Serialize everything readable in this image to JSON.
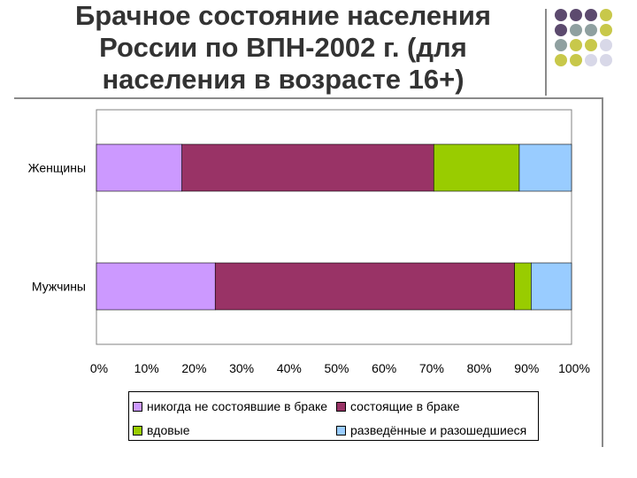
{
  "title": "Брачное состояние населения России по ВПН-2002 г.  (для населения в  возрасте 16+)",
  "decor_colors": [
    "#5c4a6e",
    "#8fa0a0",
    "#c8c84a",
    "#d8d8e8"
  ],
  "chart_data": {
    "type": "bar",
    "orientation": "horizontal",
    "stacked": "percent",
    "title": "Брачное состояние населения России по ВПН-2002 г.  (для населения в  возрасте 16+)",
    "categories": [
      "Женщины",
      "Мужчины"
    ],
    "series": [
      {
        "name": "никогда не состоявшие в браке",
        "color": "#cc99ff",
        "values": [
          18,
          25
        ]
      },
      {
        "name": "состоящие в браке",
        "color": "#993366",
        "values": [
          53,
          63
        ]
      },
      {
        "name": "вдовые",
        "color": "#99cc00",
        "values": [
          18,
          3.5
        ]
      },
      {
        "name": "разведённые и разошедшиеся",
        "color": "#99ccff",
        "values": [
          11,
          8.5
        ]
      }
    ],
    "xticks": [
      "0%",
      "10%",
      "20%",
      "30%",
      "40%",
      "50%",
      "60%",
      "70%",
      "80%",
      "90%",
      "100%"
    ],
    "xlim": [
      0,
      100
    ],
    "grid": false,
    "legend_position": "bottom"
  }
}
